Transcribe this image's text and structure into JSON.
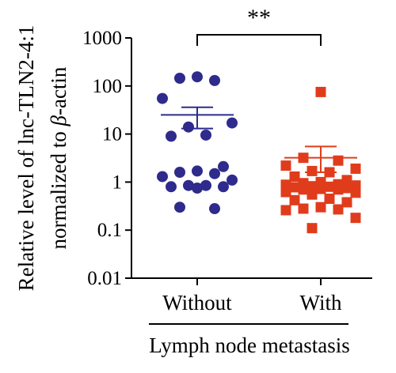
{
  "chart_data": {
    "type": "scatter",
    "y_scale": "log",
    "ylim": [
      0.01,
      1000
    ],
    "yticks": [
      {
        "value": 0.01,
        "label": "0.01"
      },
      {
        "value": 0.1,
        "label": "0.1"
      },
      {
        "value": 1,
        "label": "1"
      },
      {
        "value": 10,
        "label": "10"
      },
      {
        "value": 100,
        "label": "100"
      },
      {
        "value": 1000,
        "label": "1000"
      }
    ],
    "ylabel_line1": "Relative level of lnc-TLN2-4:1",
    "ylabel_line2_prefix": "normalized to ",
    "ylabel_beta": "β",
    "ylabel_line2_suffix": "-actin",
    "xlabel": "Lymph node metastasis",
    "categories": [
      "Without",
      "With"
    ],
    "significance": "**",
    "colors": {
      "Without": "#2e2b8c",
      "With": "#e03c1c"
    },
    "groups": [
      {
        "name": "Without",
        "marker": "circle",
        "mean": 25,
        "sem_low": 13,
        "sem_high": 36,
        "points": [
          155,
          145,
          130,
          55,
          17,
          14,
          9.5,
          9,
          2.1,
          1.7,
          1.6,
          1.5,
          1.3,
          1.1,
          0.85,
          0.85,
          0.8,
          0.8,
          0.75,
          0.3,
          0.28
        ]
      },
      {
        "name": "With",
        "marker": "square",
        "mean": 3.2,
        "sem_low": 1.6,
        "sem_high": 5.5,
        "points": [
          75,
          3.2,
          2.8,
          2.2,
          1.9,
          1.7,
          1.6,
          1.3,
          1.1,
          1.0,
          0.95,
          0.9,
          0.88,
          0.85,
          0.82,
          0.8,
          0.78,
          0.75,
          0.72,
          0.7,
          0.7,
          0.62,
          0.6,
          0.55,
          0.45,
          0.42,
          0.38,
          0.3,
          0.28,
          0.27,
          0.26,
          0.18,
          0.11
        ]
      }
    ]
  }
}
